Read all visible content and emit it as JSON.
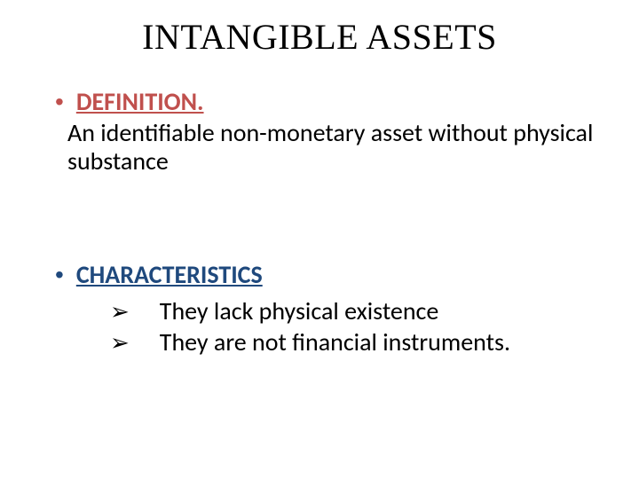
{
  "title": "INTANGIBLE ASSETS",
  "colors": {
    "heading1": "#c0504d",
    "heading2": "#1f497d",
    "bullet": "#1f497d",
    "text": "#000000",
    "background": "#ffffff"
  },
  "fonts": {
    "title_family": "Times New Roman",
    "body_family": "Calibri",
    "title_size_pt": 40,
    "body_size_pt": 28
  },
  "sections": [
    {
      "heading": "DEFINITION.",
      "heading_color": "#c0504d",
      "body": "An identifiable non-monetary asset without physical substance"
    },
    {
      "heading": "CHARACTERISTICS",
      "heading_color": "#1f497d",
      "items": [
        "They lack physical existence",
        " They are not financial instruments."
      ]
    }
  ],
  "bullets": {
    "level1_glyph": "•",
    "level2_glyph": "➢"
  }
}
